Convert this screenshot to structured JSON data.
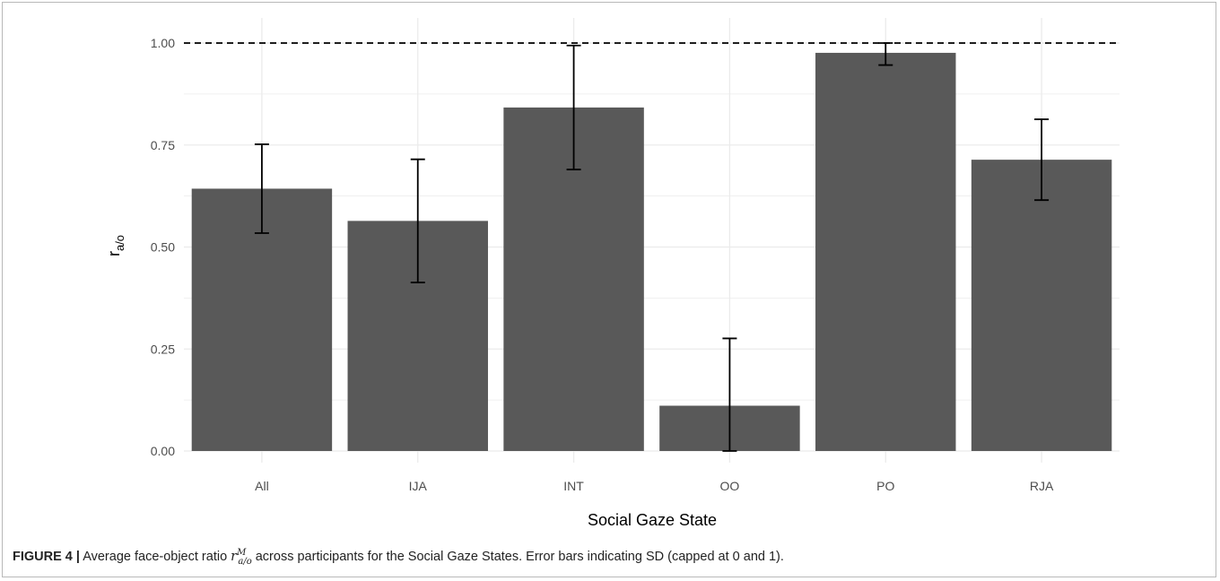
{
  "chart_data": {
    "type": "bar",
    "xlabel": "Social Gaze State",
    "ylabel_main": "r",
    "ylabel_sub": "a/o",
    "categories": [
      "All",
      "IJA",
      "INT",
      "OO",
      "PO",
      "RJA"
    ],
    "values": [
      0.643,
      0.564,
      0.842,
      0.111,
      0.976,
      0.714
    ],
    "error_low": [
      0.534,
      0.413,
      0.69,
      0.0,
      0.946,
      0.615
    ],
    "error_high": [
      0.752,
      0.715,
      0.994,
      0.276,
      1.0,
      0.813
    ],
    "ylim": [
      0,
      1.0
    ],
    "yticks": [
      0.0,
      0.25,
      0.5,
      0.75,
      1.0
    ],
    "ytick_labels": [
      "0.00",
      "0.25",
      "0.50",
      "0.75",
      "1.00"
    ],
    "reference_line": 1.0,
    "grid": true,
    "bar_color": "#595959",
    "grid_color": "#ebebeb"
  },
  "caption": {
    "label": "FIGURE 4 |",
    "text_before": " Average face-object ratio ",
    "math_symbol": "r",
    "math_sup": "M",
    "math_sub": "a/o",
    "text_after": " across participants for the Social Gaze States. Error bars indicating SD (capped at 0 and 1)."
  }
}
